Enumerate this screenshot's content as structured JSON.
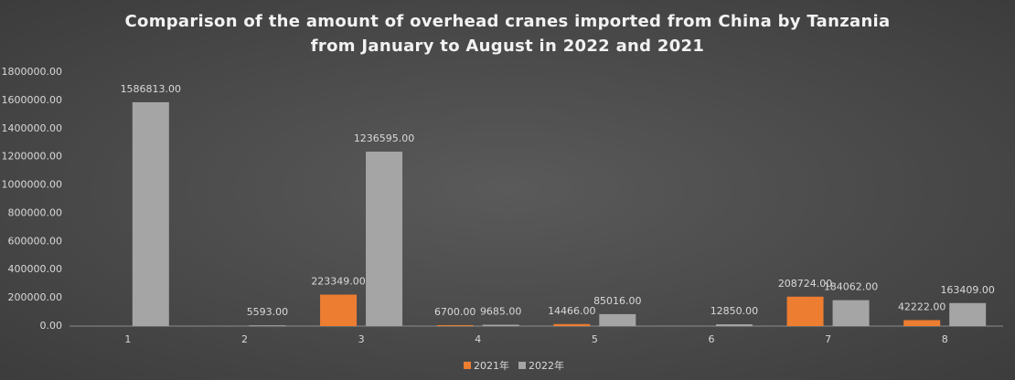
{
  "chart_data": {
    "type": "bar",
    "title": "Comparison of the amount of overhead cranes imported from China by Tanzania from January to August in 2022 and 2021",
    "categories": [
      "1",
      "2",
      "3",
      "4",
      "5",
      "6",
      "7",
      "8"
    ],
    "series": [
      {
        "name": "2021年",
        "color": "#ed7d31",
        "values": [
          null,
          null,
          223349,
          6700,
          14466,
          null,
          208724,
          42222
        ],
        "value_labels": [
          null,
          null,
          "223349.00",
          "6700.00",
          "14466.00",
          null,
          "208724.00",
          "42222.00"
        ]
      },
      {
        "name": "2022年",
        "color": "#a5a5a5",
        "values": [
          1586813,
          5593,
          1236595,
          9685,
          85016,
          12850,
          184062,
          163409
        ],
        "value_labels": [
          "1586813.00",
          "5593.00",
          "1236595.00",
          "9685.00",
          "85016.00",
          "12850.00",
          "184062.00",
          "163409.00"
        ]
      }
    ],
    "ylim": [
      0,
      1800000
    ],
    "yticks": [
      {
        "value": 0,
        "label": "0.00"
      },
      {
        "value": 200000,
        "label": "200000.00"
      },
      {
        "value": 400000,
        "label": "400000.00"
      },
      {
        "value": 600000,
        "label": "600000.00"
      },
      {
        "value": 800000,
        "label": "800000.00"
      },
      {
        "value": 1000000,
        "label": "1000000.00"
      },
      {
        "value": 1200000,
        "label": "1200000.00"
      },
      {
        "value": 1400000,
        "label": "1400000.00"
      },
      {
        "value": 1600000,
        "label": "1600000.00"
      },
      {
        "value": 1800000,
        "label": "1800000.00"
      }
    ],
    "grid": false,
    "legend": "bottom"
  }
}
